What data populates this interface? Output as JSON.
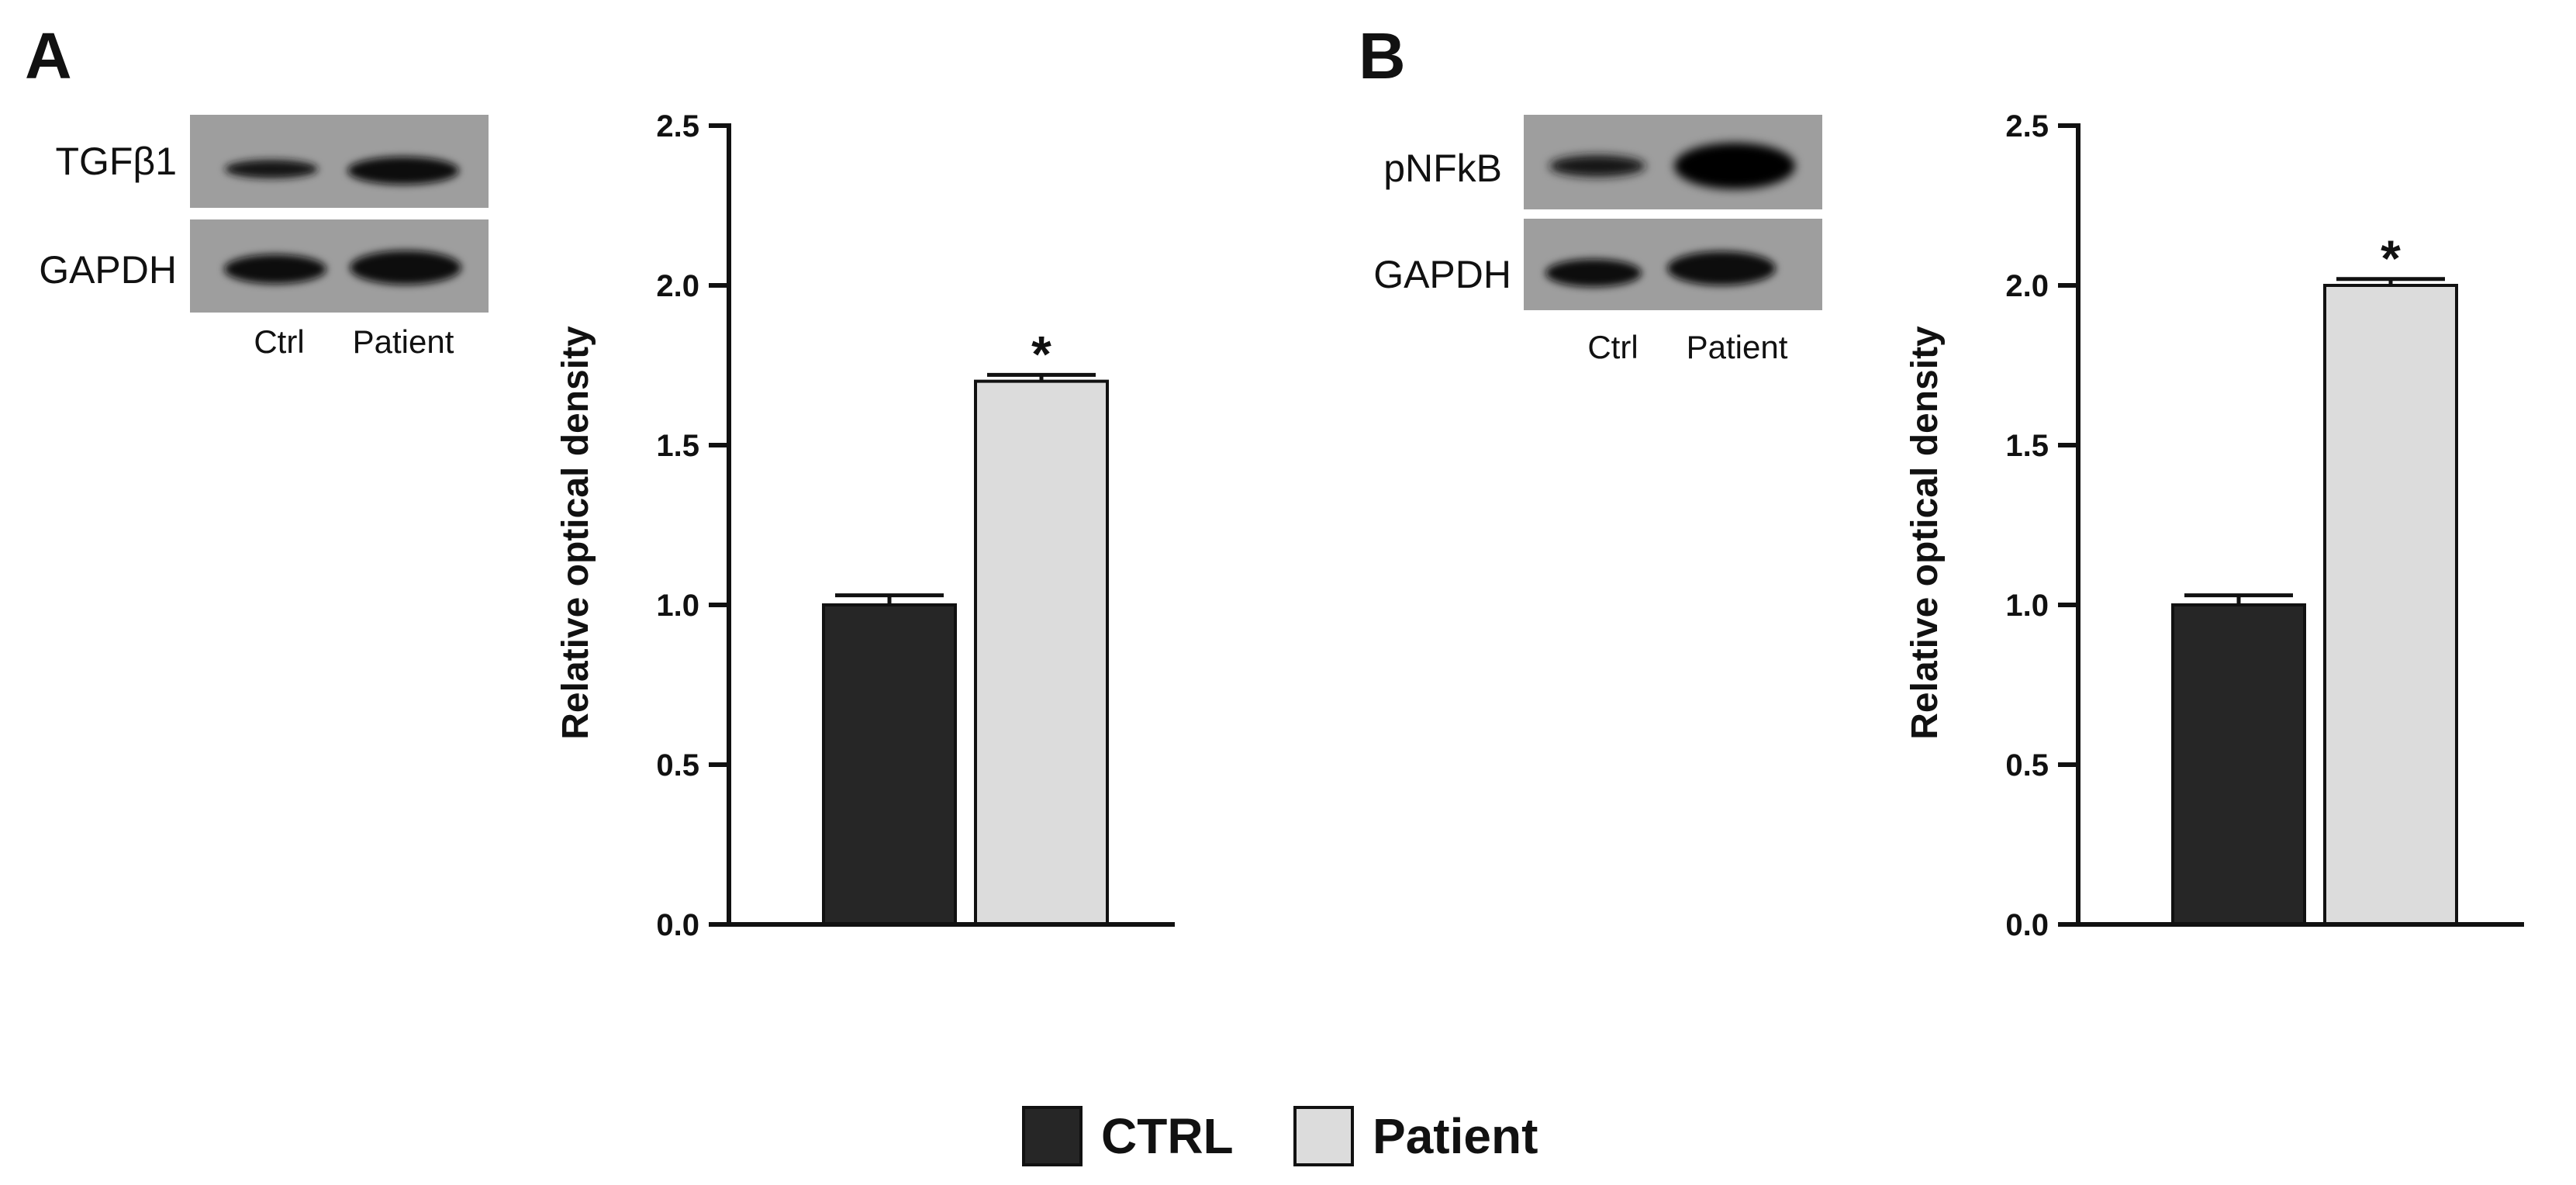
{
  "panels": [
    {
      "letter": "A",
      "blot": {
        "rows": [
          "TGFβ1",
          "GAPDH"
        ],
        "lanes": [
          "Ctrl",
          "Patient"
        ]
      }
    },
    {
      "letter": "B",
      "blot": {
        "rows": [
          "pNFkB",
          "GAPDH"
        ],
        "lanes": [
          "Ctrl",
          "Patient"
        ]
      }
    }
  ],
  "legend": [
    {
      "label": "CTRL",
      "color": "#262626"
    },
    {
      "label": "Patient",
      "color": "#dcdcdc"
    }
  ],
  "chart_data": [
    {
      "type": "bar",
      "categories": [
        "CTRL",
        "Patient"
      ],
      "values": [
        1.0,
        1.7
      ],
      "errors": [
        0.03,
        0.02
      ],
      "colors": [
        "#262626",
        "#dcdcdc"
      ],
      "significance": [
        "",
        "*"
      ],
      "ylabel": "Relative optical density",
      "xlabel": "",
      "ylim": [
        0,
        2.5
      ],
      "yticks": [
        "0.0",
        "0.5",
        "1.0",
        "1.5",
        "2.0",
        "2.5"
      ]
    },
    {
      "type": "bar",
      "categories": [
        "CTRL",
        "Patient"
      ],
      "values": [
        1.0,
        2.0
      ],
      "errors": [
        0.03,
        0.02
      ],
      "colors": [
        "#262626",
        "#dcdcdc"
      ],
      "significance": [
        "",
        "*"
      ],
      "ylabel": "Relative optical density",
      "xlabel": "",
      "ylim": [
        0,
        2.5
      ],
      "yticks": [
        "0.0",
        "0.5",
        "1.0",
        "1.5",
        "2.0",
        "2.5"
      ]
    }
  ]
}
